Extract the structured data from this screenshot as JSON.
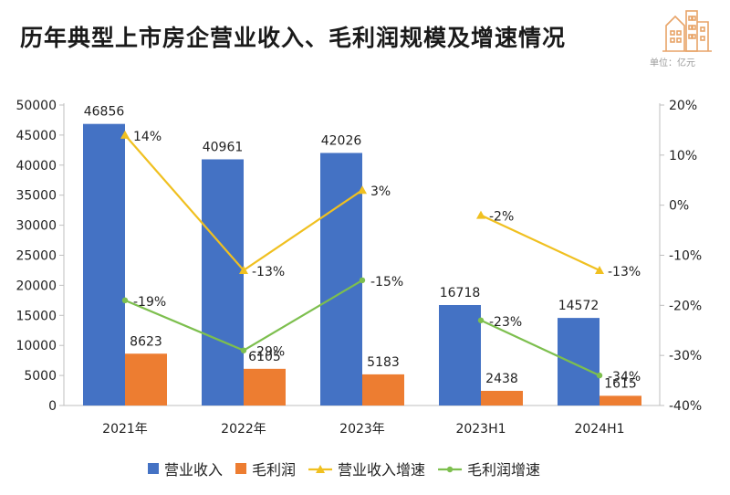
{
  "title": "历年典型上市房企营业收入、毛利润规模及增速情况",
  "unit_label": "单位：亿元",
  "colors": {
    "revenue": "#4472c4",
    "profit": "#ed7d31",
    "revenue_growth": "#f0c020",
    "profit_growth": "#7dbf4e",
    "logo": "#e8a468"
  },
  "chart_data": {
    "type": "bar",
    "categories": [
      "2021年",
      "2022年",
      "2023年",
      "2023H1",
      "2024H1"
    ],
    "y_left": {
      "min": 0,
      "max": 50000,
      "ticks": [
        "0",
        "5000",
        "10000",
        "15000",
        "20000",
        "25000",
        "30000",
        "35000",
        "40000",
        "45000",
        "50000"
      ]
    },
    "y_right": {
      "min": -40,
      "max": 20,
      "ticks": [
        "-40%",
        "-30%",
        "-20%",
        "-10%",
        "0%",
        "10%",
        "20%"
      ]
    },
    "grid": false,
    "legend_position": "bottom",
    "bar_series": [
      {
        "name": "营业收入",
        "values": [
          46856,
          40961,
          42026,
          16718,
          14572
        ],
        "labels": [
          "46856",
          "40961",
          "42026",
          "16718",
          "14572"
        ]
      },
      {
        "name": "毛利润",
        "values": [
          8623,
          6105,
          5183,
          2438,
          1615
        ],
        "labels": [
          "8623",
          "6105",
          "5183",
          "2438",
          "1615"
        ]
      }
    ],
    "line_series": [
      {
        "name": "营业收入增速",
        "axis": "right",
        "values": [
          14,
          -13,
          3,
          -2,
          -13
        ],
        "labels": [
          "14%",
          "-13%",
          "3%",
          "-2%",
          "-13%"
        ],
        "segments": [
          [
            0,
            1,
            2
          ],
          [
            3,
            4
          ]
        ]
      },
      {
        "name": "毛利润增速",
        "axis": "right",
        "values": [
          -19,
          -29,
          -15,
          -23,
          -34
        ],
        "labels": [
          "-19%",
          "-29%",
          "-15%",
          "-23%",
          "-34%"
        ],
        "segments": [
          [
            0,
            1,
            2
          ],
          [
            3,
            4
          ]
        ]
      }
    ]
  }
}
